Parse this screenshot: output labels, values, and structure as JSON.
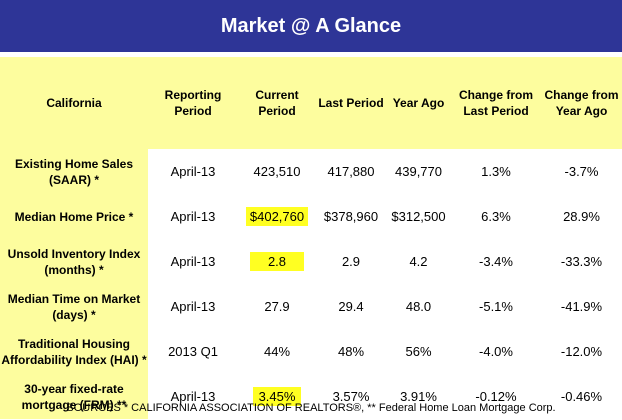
{
  "title": "Market @ A Glance",
  "headers": {
    "state": "California",
    "period": "Reporting Period",
    "current": "Current Period",
    "last": "Last Period",
    "year_ago": "Year Ago",
    "chg_last": "Change from Last Period",
    "chg_year": "Change from Year Ago"
  },
  "rows": [
    {
      "label": "Existing Home Sales (SAAR) *",
      "period": "April-13",
      "current": "423,510",
      "last": "417,880",
      "year_ago": "439,770",
      "chg_last": "1.3%",
      "chg_year": "-3.7%"
    },
    {
      "label": "Median Home Price *",
      "period": "April-13",
      "current": "$402,760",
      "last": "$378,960",
      "year_ago": "$312,500",
      "chg_last": "6.3%",
      "chg_year": "28.9%"
    },
    {
      "label": "Unsold Inventory Index (months) *",
      "period": "April-13",
      "current": "2.8",
      "last": "2.9",
      "year_ago": "4.2",
      "chg_last": "-3.4%",
      "chg_year": "-33.3%"
    },
    {
      "label": "Median Time on Market (days) *",
      "period": "April-13",
      "current": "27.9",
      "last": "29.4",
      "year_ago": "48.0",
      "chg_last": "-5.1%",
      "chg_year": "-41.9%"
    },
    {
      "label": "Traditional Housing Affordability Index (HAI) *",
      "period": "2013 Q1",
      "current": "44%",
      "last": "48%",
      "year_ago": "56%",
      "chg_last": "-4.0%",
      "chg_year": "-12.0%"
    },
    {
      "label": "30-year fixed-rate mortgage (FRM) **",
      "period": "April-13",
      "current": "3.45%",
      "last": "3.57%",
      "year_ago": "3.91%",
      "chg_last": "-0.12%",
      "chg_year": "-0.46%"
    }
  ],
  "source": "SOURCES * CALIFORNIA ASSOCIATION OF REALTORS®, ** Federal Home Loan Mortgage Corp.",
  "colors": {
    "title_bg": "#2e3597",
    "header_bg": "#fdfd9e",
    "highlight": "#ffff22"
  }
}
